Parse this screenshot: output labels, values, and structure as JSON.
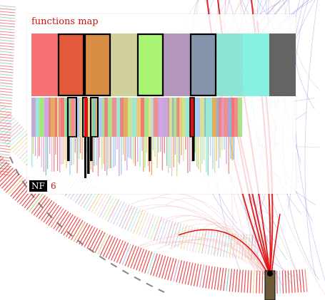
{
  "panel": {
    "title": "functions map",
    "nf_label": "NF",
    "nf_count": "6"
  },
  "colors": {
    "accent": "#cc1111",
    "edge_red": "#e01010",
    "edge_blue": "#6a6adf",
    "edge_pink": "#f0a0a0",
    "highlight_border": "#000000",
    "top_level_blocks": [
      "#f66a6a",
      "#e0512f",
      "#d6883a",
      "#cfcf96",
      "#a5f36b",
      "#b090b8",
      "#7e8da8",
      "#88e3d2",
      "#7ff0dc",
      "#5c5c5c"
    ]
  },
  "functions_map": {
    "levels": 3,
    "top_level_block_count": 10,
    "highlighted_top_blocks": [
      1,
      2,
      4,
      6
    ],
    "highlighted_mid_blocks": 4
  }
}
